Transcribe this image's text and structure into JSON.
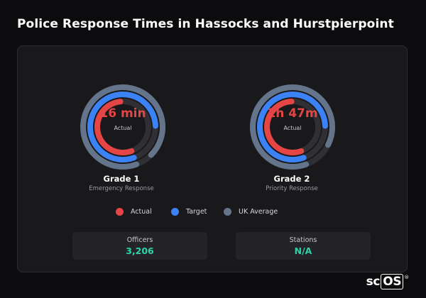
{
  "title": "Police Response Times in Hassocks and Hurstpierpoint",
  "grades": [
    {
      "value": "16 min",
      "value_sub": "Actual",
      "name": "Grade 1",
      "type": "Emergency Response",
      "rings": {
        "actual": 0.54,
        "target": 0.8,
        "uk_average": 0.93
      }
    },
    {
      "value": "1h 47m",
      "value_sub": "Actual",
      "name": "Grade 2",
      "type": "Priority Response",
      "rings": {
        "actual": 0.55,
        "target": 0.8,
        "uk_average": 0.88
      }
    }
  ],
  "legend": {
    "actual": "Actual",
    "target": "Target",
    "uk_average": "UK Average"
  },
  "colors": {
    "actual": "#e64545",
    "target": "#3b82f6",
    "uk_average": "#64748b",
    "track": "#2f2f34",
    "stat_value": "#2dd4a8"
  },
  "stats": [
    {
      "label": "Officers",
      "value": "3,206"
    },
    {
      "label": "Stations",
      "value": "N/A"
    }
  ],
  "logo": {
    "text_a": "sc",
    "text_b": "OS",
    "mark": "®"
  }
}
